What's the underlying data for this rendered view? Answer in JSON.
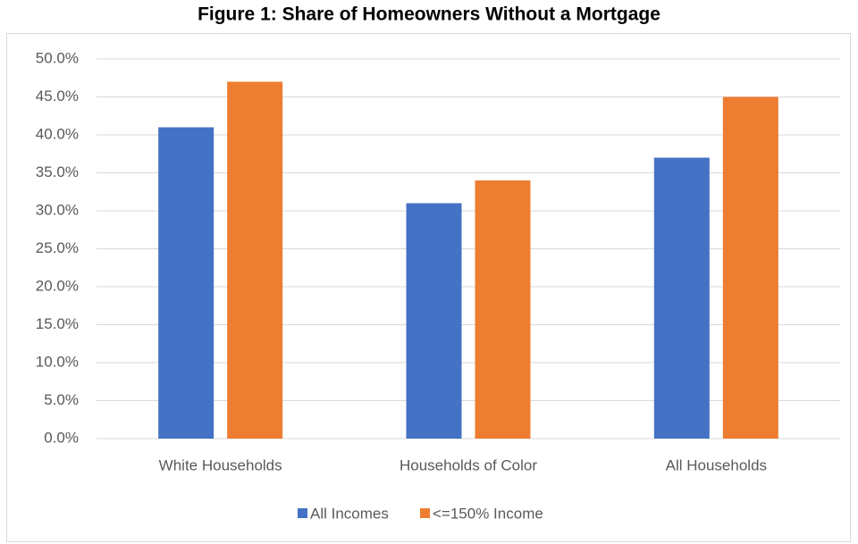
{
  "chart_data": {
    "type": "bar",
    "title": "Figure 1: Share of Homeowners Without a Mortgage",
    "categories": [
      "White Households",
      "Households of Color",
      "All Households"
    ],
    "series": [
      {
        "name": "All Incomes",
        "color": "#4472c4",
        "values": [
          41,
          31,
          37
        ]
      },
      {
        "name": "<=150% Income",
        "color": "#ed7d31",
        "values": [
          47,
          34,
          45
        ]
      }
    ],
    "ylim": [
      0,
      50
    ],
    "yticks": [
      {
        "value": 0,
        "label": "0.0%"
      },
      {
        "value": 5,
        "label": "5.0%"
      },
      {
        "value": 10,
        "label": "10.0%"
      },
      {
        "value": 15,
        "label": "15.0%"
      },
      {
        "value": 20,
        "label": "20.0%"
      },
      {
        "value": 25,
        "label": "25.0%"
      },
      {
        "value": 30,
        "label": "30.0%"
      },
      {
        "value": 35,
        "label": "35.0%"
      },
      {
        "value": 40,
        "label": "40.0%"
      },
      {
        "value": 45,
        "label": "45.0%"
      },
      {
        "value": 50,
        "label": "50.0%"
      }
    ],
    "grid": true,
    "legend": "bottom"
  }
}
